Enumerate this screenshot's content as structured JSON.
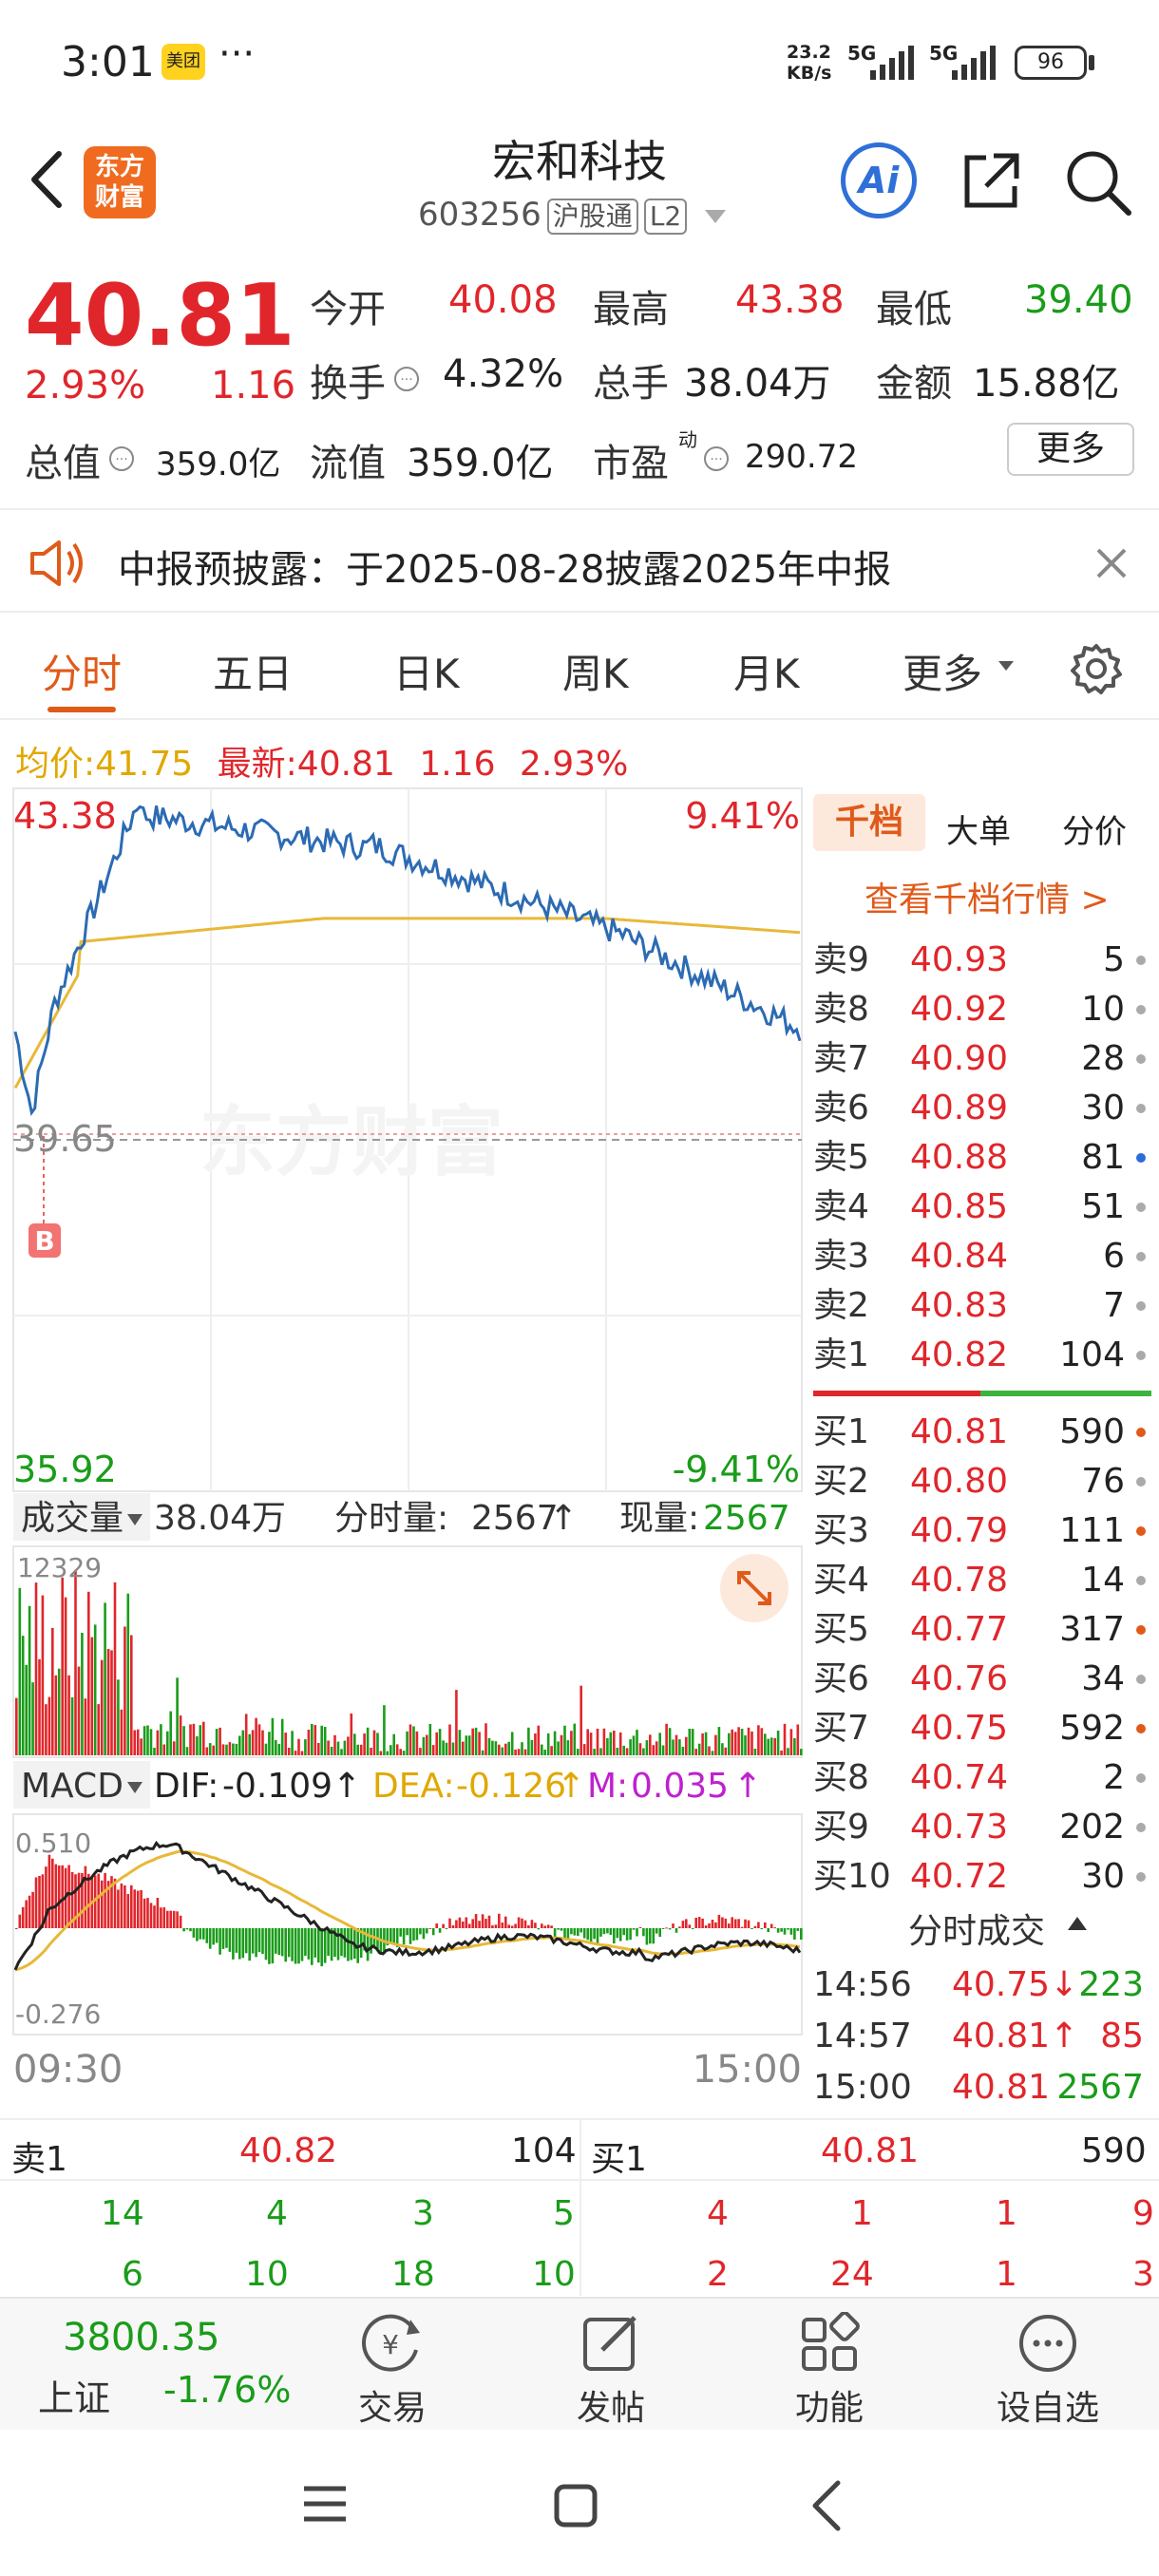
{
  "status_bar": {
    "time": "3:01",
    "app_badge": "美团",
    "more": "···",
    "net_speed_value": "23.2",
    "net_speed_unit": "KB/s",
    "sig1": "5G",
    "sig2": "5G",
    "battery": "96"
  },
  "header": {
    "logo_line1": "东方",
    "logo_line2": "财富",
    "stock_name": "宏和科技",
    "stock_code": "603256",
    "tag_hgt": "沪股通",
    "tag_l2": "L2",
    "ai_label": "Ai"
  },
  "quote": {
    "price": "40.81",
    "pct": "2.93%",
    "change": "1.16",
    "open_label": "今开",
    "open": "40.08",
    "high_label": "最高",
    "high": "43.38",
    "low_label": "最低",
    "low": "39.40",
    "turnover_label": "换手",
    "turnover": "4.32%",
    "volume_label": "总手",
    "volume": "38.04万",
    "amount_label": "金额",
    "amount": "15.88亿",
    "mktcap_label": "总值",
    "mktcap": "359.0亿",
    "float_label": "流值",
    "float": "359.0亿",
    "pe_label": "市盈",
    "pe_sup": "动",
    "pe": "290.72",
    "more": "更多"
  },
  "notice": {
    "text": "中报预披露：于2025-08-28披露2025年中报"
  },
  "tabs": [
    "分时",
    "五日",
    "日K",
    "周K",
    "月K",
    "更多"
  ],
  "info_line": {
    "avg_label": "均价:",
    "avg": "41.75",
    "latest_label": "最新:",
    "latest": "40.81",
    "chg": "1.16",
    "pct": "2.93%"
  },
  "chart": {
    "y_top": "43.38",
    "y_mid": "39.65",
    "y_bot": "35.92",
    "pct_top": "9.41%",
    "pct_bot": "-9.41%",
    "watermark": "东方财富",
    "buy_marker": "B",
    "vol_label": "成交量",
    "vol_total": "38.04万",
    "period_vol_label": "分时量:",
    "period_vol": "2567",
    "cur_vol_label": "现量:",
    "cur_vol": "2567",
    "vol_max": "12329",
    "macd_label": "MACD",
    "dif_label": "DIF:",
    "dif": "-0.109",
    "dea_label": "DEA:",
    "dea": "-0.126",
    "m_label": "M:",
    "m": "0.035",
    "macd_top": "0.510",
    "macd_bot": "-0.276",
    "t_start": "09:30",
    "t_end": "15:00",
    "colors": {
      "price": "#2c6bb3",
      "avg": "#e8b838",
      "up": "#e0262b",
      "down": "#1a9c1a"
    }
  },
  "panel": {
    "tabs": [
      "千档",
      "大单",
      "分价"
    ],
    "link": "查看千档行情 >",
    "asks": [
      {
        "label": "卖9",
        "price": "40.93",
        "vol": "5"
      },
      {
        "label": "卖8",
        "price": "40.92",
        "vol": "10"
      },
      {
        "label": "卖7",
        "price": "40.90",
        "vol": "28"
      },
      {
        "label": "卖6",
        "price": "40.89",
        "vol": "30"
      },
      {
        "label": "卖5",
        "price": "40.88",
        "vol": "81"
      },
      {
        "label": "卖4",
        "price": "40.85",
        "vol": "51"
      },
      {
        "label": "卖3",
        "price": "40.84",
        "vol": "6"
      },
      {
        "label": "卖2",
        "price": "40.83",
        "vol": "7"
      },
      {
        "label": "卖1",
        "price": "40.82",
        "vol": "104"
      }
    ],
    "bids": [
      {
        "label": "买1",
        "price": "40.81",
        "vol": "590"
      },
      {
        "label": "买2",
        "price": "40.80",
        "vol": "76"
      },
      {
        "label": "买3",
        "price": "40.79",
        "vol": "111"
      },
      {
        "label": "买4",
        "price": "40.78",
        "vol": "14"
      },
      {
        "label": "买5",
        "price": "40.77",
        "vol": "317"
      },
      {
        "label": "买6",
        "price": "40.76",
        "vol": "34"
      },
      {
        "label": "买7",
        "price": "40.75",
        "vol": "592"
      },
      {
        "label": "买8",
        "price": "40.74",
        "vol": "2"
      },
      {
        "label": "买9",
        "price": "40.73",
        "vol": "202"
      },
      {
        "label": "买10",
        "price": "40.72",
        "vol": "30"
      }
    ],
    "trades_label": "分时成交",
    "trades": [
      {
        "time": "14:56",
        "price": "40.75↓",
        "vol": "223"
      },
      {
        "time": "14:57",
        "price": "40.81↑",
        "vol": "85"
      },
      {
        "time": "15:00",
        "price": "40.81",
        "vol": "2567"
      }
    ]
  },
  "bottom_table": {
    "ask_label": "卖1",
    "ask_price": "40.82",
    "ask_vol": "104",
    "bid_label": "买1",
    "bid_price": "40.81",
    "bid_vol": "590",
    "row1_left": [
      "14",
      "4",
      "3",
      "5"
    ],
    "row1_right": [
      "4",
      "1",
      "1",
      "9"
    ],
    "row2_left": [
      "6",
      "10",
      "18",
      "10"
    ],
    "row2_right": [
      "2",
      "24",
      "1",
      "3"
    ]
  },
  "nav": {
    "index_value": "3800.35",
    "index_name": "上证",
    "index_pct": "-1.76%",
    "items": [
      "交易",
      "发帖",
      "功能",
      "设自选"
    ]
  }
}
